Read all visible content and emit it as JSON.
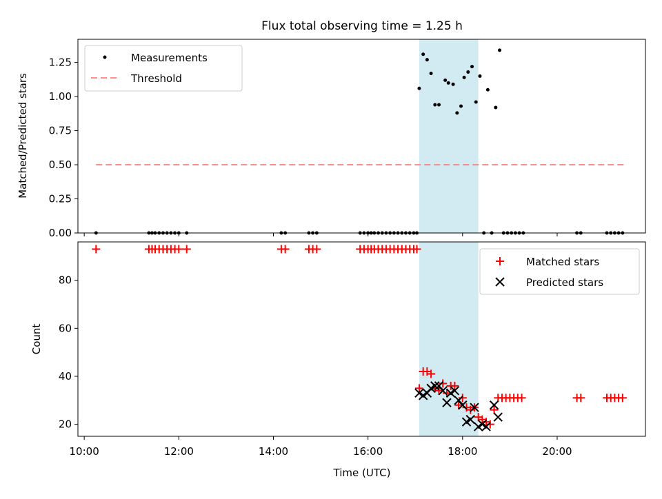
{
  "chart_data": [
    {
      "type": "scatter",
      "title": "Flux total observing time = 1.25 h",
      "xlabel": "",
      "ylabel": "Matched/Predicted stars",
      "xlim": [
        "09:52",
        "21:52"
      ],
      "ylim": [
        0,
        1.42
      ],
      "yticks": [
        "0.00",
        "0.25",
        "0.50",
        "0.75",
        "1.00",
        "1.25"
      ],
      "ytick_values": [
        0,
        0.25,
        0.5,
        0.75,
        1.0,
        1.25
      ],
      "highlight_span": [
        "17:05",
        "18:20"
      ],
      "highlight_color": "#add8e6",
      "legend": {
        "placement": "top-left",
        "entries": [
          {
            "label": "Measurements",
            "marker": "dot",
            "color": "#000000"
          },
          {
            "label": "Threshold",
            "marker": "dashed-line",
            "color": "#ff7f7f"
          }
        ]
      },
      "threshold": {
        "name": "Threshold",
        "y": 0.5,
        "x": [
          "10:15",
          "21:25"
        ],
        "color": "#ff7f7f"
      },
      "series": [
        {
          "name": "Measurements",
          "color": "#000000",
          "points": [
            [
              "10:15",
              0.0
            ],
            [
              "11:22",
              0.0
            ],
            [
              "11:26",
              0.0
            ],
            [
              "11:30",
              0.0
            ],
            [
              "11:35",
              0.0
            ],
            [
              "11:40",
              0.0
            ],
            [
              "11:45",
              0.0
            ],
            [
              "11:50",
              0.0
            ],
            [
              "11:55",
              0.0
            ],
            [
              "12:00",
              0.0
            ],
            [
              "12:10",
              0.0
            ],
            [
              "14:10",
              0.0
            ],
            [
              "14:15",
              0.0
            ],
            [
              "14:45",
              0.0
            ],
            [
              "14:50",
              0.0
            ],
            [
              "14:55",
              0.0
            ],
            [
              "15:50",
              0.0
            ],
            [
              "15:55",
              0.0
            ],
            [
              "16:00",
              0.0
            ],
            [
              "16:04",
              0.0
            ],
            [
              "16:08",
              0.0
            ],
            [
              "16:13",
              0.0
            ],
            [
              "16:18",
              0.0
            ],
            [
              "16:23",
              0.0
            ],
            [
              "16:28",
              0.0
            ],
            [
              "16:33",
              0.0
            ],
            [
              "16:38",
              0.0
            ],
            [
              "16:43",
              0.0
            ],
            [
              "16:48",
              0.0
            ],
            [
              "16:53",
              0.0
            ],
            [
              "16:58",
              0.0
            ],
            [
              "17:02",
              0.0
            ],
            [
              "17:05",
              1.06
            ],
            [
              "17:10",
              1.31
            ],
            [
              "17:15",
              1.27
            ],
            [
              "17:20",
              1.17
            ],
            [
              "17:25",
              0.94
            ],
            [
              "17:30",
              0.94
            ],
            [
              "17:38",
              1.12
            ],
            [
              "17:42",
              1.1
            ],
            [
              "17:48",
              1.09
            ],
            [
              "17:53",
              0.88
            ],
            [
              "17:58",
              0.93
            ],
            [
              "18:02",
              1.14
            ],
            [
              "18:07",
              1.18
            ],
            [
              "18:12",
              1.22
            ],
            [
              "18:17",
              0.96
            ],
            [
              "18:22",
              1.15
            ],
            [
              "18:27",
              0.0
            ],
            [
              "18:32",
              1.05
            ],
            [
              "18:37",
              0.0
            ],
            [
              "18:42",
              0.92
            ],
            [
              "18:47",
              1.34
            ],
            [
              "18:52",
              0.0
            ],
            [
              "18:57",
              0.0
            ],
            [
              "19:02",
              0.0
            ],
            [
              "19:07",
              0.0
            ],
            [
              "19:12",
              0.0
            ],
            [
              "19:17",
              0.0
            ],
            [
              "20:25",
              0.0
            ],
            [
              "20:30",
              0.0
            ],
            [
              "21:03",
              0.0
            ],
            [
              "21:08",
              0.0
            ],
            [
              "21:13",
              0.0
            ],
            [
              "21:18",
              0.0
            ],
            [
              "21:23",
              0.0
            ]
          ]
        }
      ]
    },
    {
      "type": "scatter",
      "title": "",
      "xlabel": "Time (UTC)",
      "ylabel": "Count",
      "xlim": [
        "09:52",
        "21:52"
      ],
      "ylim": [
        15,
        96
      ],
      "yticks": [
        "20",
        "40",
        "60",
        "80"
      ],
      "ytick_values": [
        20,
        40,
        60,
        80
      ],
      "xticks": [
        "10:00",
        "12:00",
        "14:00",
        "16:00",
        "18:00",
        "20:00"
      ],
      "highlight_span": [
        "17:05",
        "18:20"
      ],
      "highlight_color": "#add8e6",
      "legend": {
        "placement": "top-right",
        "entries": [
          {
            "label": "Matched stars",
            "marker": "plus",
            "color": "#ff0000"
          },
          {
            "label": "Predicted stars",
            "marker": "x",
            "color": "#000000"
          }
        ]
      },
      "series": [
        {
          "name": "Matched stars",
          "color": "#ff0000",
          "marker": "plus",
          "points": [
            [
              "10:15",
              93
            ],
            [
              "11:22",
              93
            ],
            [
              "11:26",
              93
            ],
            [
              "11:30",
              93
            ],
            [
              "11:35",
              93
            ],
            [
              "11:40",
              93
            ],
            [
              "11:45",
              93
            ],
            [
              "11:50",
              93
            ],
            [
              "11:55",
              93
            ],
            [
              "12:00",
              93
            ],
            [
              "12:10",
              93
            ],
            [
              "14:10",
              93
            ],
            [
              "14:15",
              93
            ],
            [
              "14:45",
              93
            ],
            [
              "14:50",
              93
            ],
            [
              "14:55",
              93
            ],
            [
              "15:50",
              93
            ],
            [
              "15:55",
              93
            ],
            [
              "16:00",
              93
            ],
            [
              "16:04",
              93
            ],
            [
              "16:08",
              93
            ],
            [
              "16:13",
              93
            ],
            [
              "16:18",
              93
            ],
            [
              "16:23",
              93
            ],
            [
              "16:28",
              93
            ],
            [
              "16:33",
              93
            ],
            [
              "16:38",
              93
            ],
            [
              "16:43",
              93
            ],
            [
              "16:48",
              93
            ],
            [
              "16:53",
              93
            ],
            [
              "16:58",
              93
            ],
            [
              "17:02",
              93
            ],
            [
              "17:05",
              35
            ],
            [
              "17:10",
              42
            ],
            [
              "17:15",
              42
            ],
            [
              "17:20",
              41
            ],
            [
              "17:25",
              35
            ],
            [
              "17:30",
              34
            ],
            [
              "17:35",
              37
            ],
            [
              "17:40",
              33
            ],
            [
              "17:45",
              36
            ],
            [
              "17:50",
              36
            ],
            [
              "17:55",
              28
            ],
            [
              "18:00",
              31
            ],
            [
              "18:05",
              27
            ],
            [
              "18:10",
              26
            ],
            [
              "18:15",
              27
            ],
            [
              "18:20",
              23
            ],
            [
              "18:25",
              22
            ],
            [
              "18:30",
              21
            ],
            [
              "18:35",
              20
            ],
            [
              "18:40",
              26
            ],
            [
              "18:45",
              31
            ],
            [
              "18:50",
              31
            ],
            [
              "18:55",
              31
            ],
            [
              "19:00",
              31
            ],
            [
              "19:05",
              31
            ],
            [
              "19:10",
              31
            ],
            [
              "19:15",
              31
            ],
            [
              "20:25",
              31
            ],
            [
              "20:30",
              31
            ],
            [
              "21:03",
              31
            ],
            [
              "21:08",
              31
            ],
            [
              "21:13",
              31
            ],
            [
              "21:18",
              31
            ],
            [
              "21:23",
              31
            ]
          ]
        },
        {
          "name": "Predicted stars",
          "color": "#000000",
          "marker": "x",
          "points": [
            [
              "17:05",
              33
            ],
            [
              "17:10",
              32
            ],
            [
              "17:15",
              33
            ],
            [
              "17:20",
              35
            ],
            [
              "17:25",
              36
            ],
            [
              "17:30",
              36
            ],
            [
              "17:35",
              34
            ],
            [
              "17:40",
              29
            ],
            [
              "17:45",
              33
            ],
            [
              "17:50",
              34
            ],
            [
              "17:55",
              30
            ],
            [
              "18:00",
              28
            ],
            [
              "18:05",
              21
            ],
            [
              "18:10",
              22
            ],
            [
              "18:15",
              27
            ],
            [
              "18:20",
              19
            ],
            [
              "18:25",
              20
            ],
            [
              "18:30",
              19
            ],
            [
              "18:40",
              28
            ],
            [
              "18:45",
              23
            ]
          ]
        }
      ]
    }
  ]
}
